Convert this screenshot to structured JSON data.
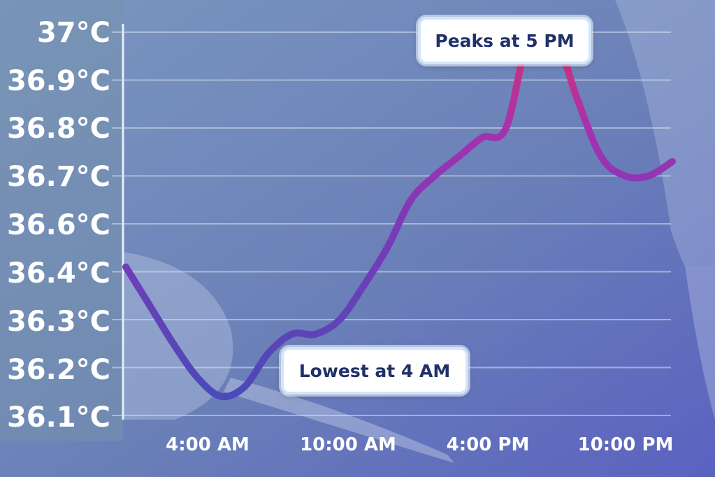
{
  "chart_data": {
    "type": "line",
    "title": "",
    "xlabel": "",
    "ylabel": "",
    "y_tick_labels": [
      "36.1°C",
      "36.2°C",
      "36.3°C",
      "36.4°C",
      "36.6°C",
      "36.7°C",
      "36.8°C",
      "36.9°C",
      "37°C"
    ],
    "x_tick_labels": [
      "4:00 AM",
      "10:00 AM",
      "4:00 PM",
      "10:00 PM"
    ],
    "series": [
      {
        "x_hours": [
          0,
          1,
          2,
          3,
          4,
          5,
          6,
          7,
          8,
          9,
          10,
          11,
          12,
          13,
          14,
          15,
          16,
          17,
          18,
          19,
          20,
          21,
          22,
          23
        ],
        "values": [
          36.41,
          36.33,
          36.25,
          36.18,
          36.14,
          36.16,
          36.23,
          36.27,
          36.27,
          36.3,
          36.37,
          36.45,
          36.55,
          36.6,
          36.64,
          36.68,
          36.7,
          36.9,
          36.9,
          36.76,
          36.64,
          36.6,
          36.6,
          36.63
        ]
      }
    ],
    "annotations": [
      {
        "text": "Peaks at 5 PM",
        "x_hour": 17
      },
      {
        "text": "Lowest at 4 AM",
        "x_hour": 4
      }
    ],
    "grid": true,
    "colors": {
      "line_start": "#4a4ab8",
      "line_mid": "#8c34b8",
      "line_end": "#e0306a",
      "background": "#6f86b6",
      "label_panel": "#7792ad"
    }
  }
}
